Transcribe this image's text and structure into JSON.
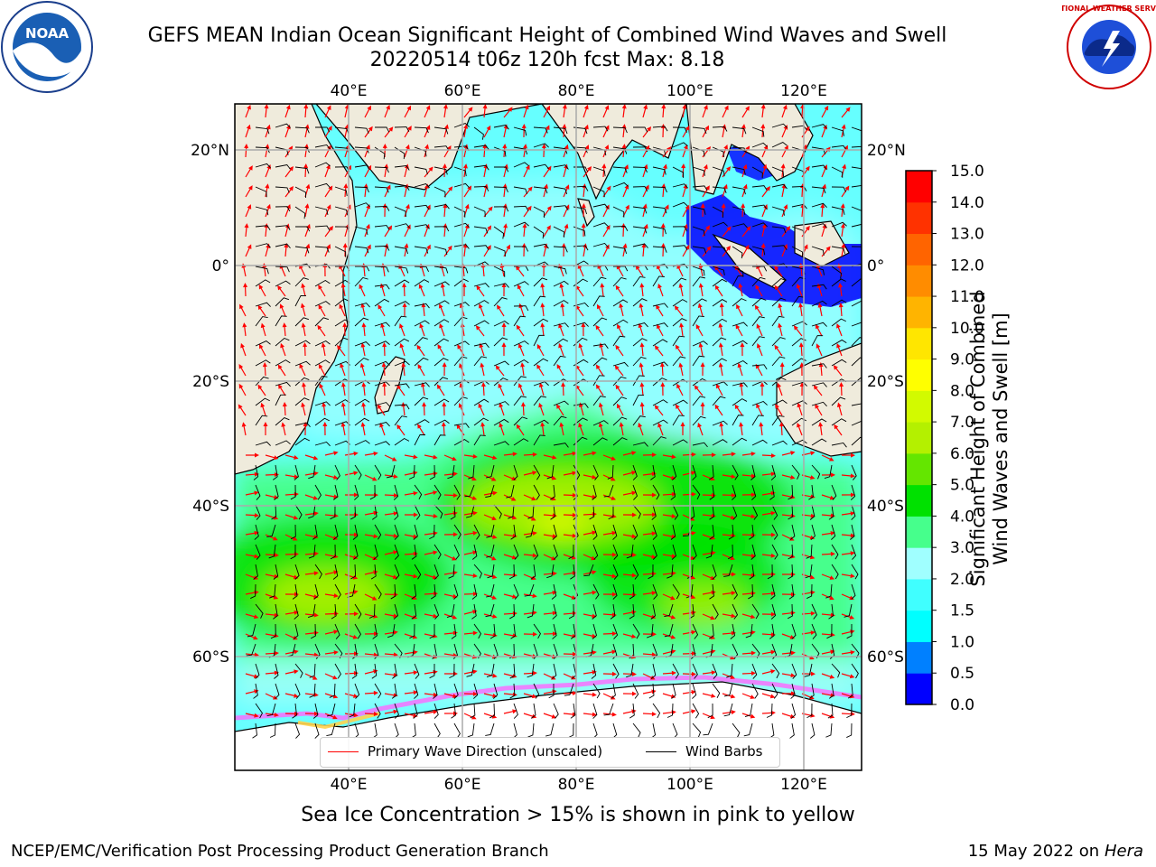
{
  "header": {
    "title_line1": "GEFS MEAN Indian Ocean Significant Height of Combined Wind Waves and Swell",
    "title_line2": "20220514 t06z 120h fcst   Max: 8.18"
  },
  "logos": {
    "left": {
      "icon": "noaa-logo",
      "text": "NOAA"
    },
    "right": {
      "icon": "nws-logo",
      "text": "NATIONAL WEATHER SERVICE"
    }
  },
  "map": {
    "lon_range": [
      20,
      130
    ],
    "lat_range": [
      -74,
      28
    ],
    "lon_ticks": [
      "40°E",
      "60°E",
      "80°E",
      "100°E",
      "120°E"
    ],
    "lat_ticks": [
      "20°N",
      "0°",
      "20°S",
      "40°S",
      "60°S"
    ],
    "grid": true,
    "colors": {
      "ocean_base": "#66ffff",
      "land": "#efebdc",
      "ice": "#ffffff"
    }
  },
  "colorbar": {
    "title_line1": "Significant Height of Combined",
    "title_line2": "Wind Waves and Swell [m]",
    "levels": [
      "0.0",
      "0.5",
      "1.0",
      "1.5",
      "2.0",
      "3.0",
      "4.0",
      "5.0",
      "6.0",
      "7.0",
      "8.0",
      "9.0",
      "10.0",
      "11.0",
      "12.0",
      "13.0",
      "14.0",
      "15.0"
    ],
    "colors": [
      "#0000ff",
      "#0080ff",
      "#00ffff",
      "#40ffff",
      "#a0ffff",
      "#46ff8c",
      "#00e100",
      "#64e600",
      "#b4f000",
      "#d2fa00",
      "#ffff00",
      "#ffe600",
      "#ffb400",
      "#ff8c00",
      "#ff6400",
      "#ff3200",
      "#ff0000"
    ]
  },
  "legend": {
    "items": [
      {
        "label": "Primary Wave Direction (unscaled)",
        "color": "#ff0000"
      },
      {
        "label": "Wind Barbs",
        "color": "#000000"
      }
    ]
  },
  "footer": {
    "note": "Sea Ice Concentration > 15% is shown in pink to yellow",
    "left": "NCEP/EMC/Verification Post Processing Product Generation Branch",
    "date": "15 May 2022 on",
    "machine": "Hera"
  }
}
